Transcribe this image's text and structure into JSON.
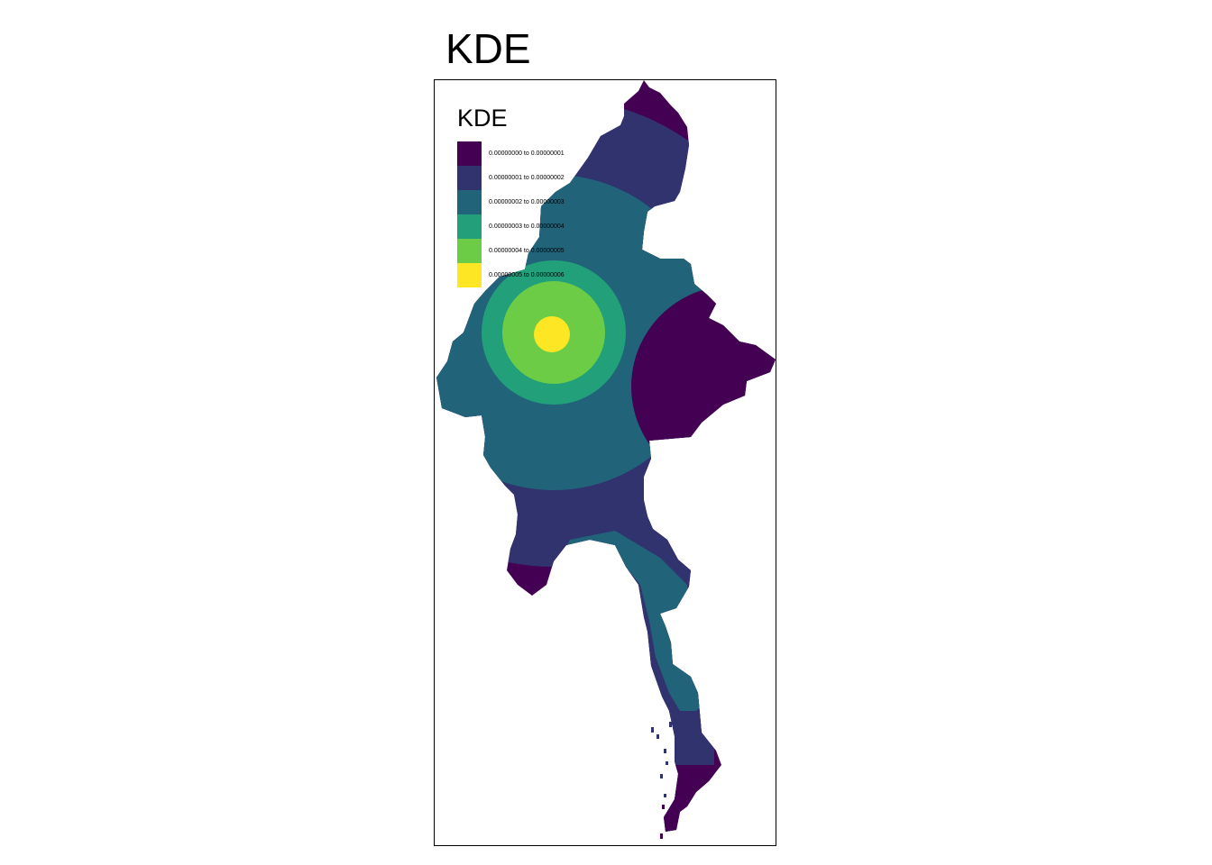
{
  "title": "KDE",
  "legend": {
    "title": "KDE",
    "items": [
      {
        "label": "0.00000000 to 0.00000001",
        "color": "#440154"
      },
      {
        "label": "0.00000001 to 0.00000002",
        "color": "#31336E"
      },
      {
        "label": "0.00000002 to 0.00000003",
        "color": "#21647A"
      },
      {
        "label": "0.00000003 to 0.00000004",
        "color": "#22A07A"
      },
      {
        "label": "0.00000004 to 0.00000005",
        "color": "#6DCC45"
      },
      {
        "label": "0.00000005 to 0.00000006",
        "color": "#FDE725"
      }
    ]
  },
  "map": {
    "region_shape": "myanmar-outline",
    "style": "raster-choropleth"
  }
}
